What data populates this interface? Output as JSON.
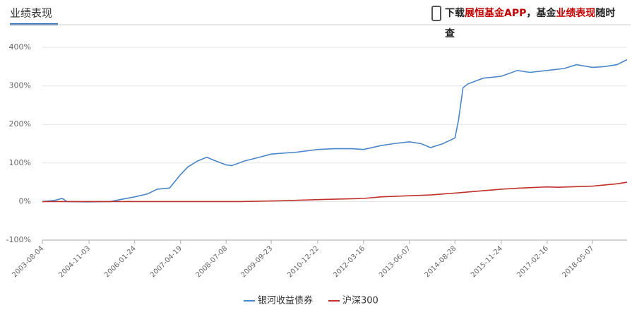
{
  "header": {
    "title": "业绩表现",
    "note_parts": [
      "下载",
      "展恒基金APP",
      "，基金",
      "业绩表现",
      "随时",
      "查"
    ]
  },
  "chart_data": {
    "type": "line",
    "xlim": [
      "2003-08-04",
      "2019-04-10"
    ],
    "xticks": [
      "2003-08-04",
      "2004-11-03",
      "2006-01-24",
      "2007-04-19",
      "2008-07-08",
      "2009-09-23",
      "2010-12-22",
      "2012-03-16",
      "2013-06-07",
      "2014-08-28",
      "2015-11-24",
      "2017-02-16",
      "2018-05-07"
    ],
    "ylim": [
      -100,
      400
    ],
    "yticks": [
      {
        "value": -100,
        "label": "-100%"
      },
      {
        "value": 0,
        "label": "0%"
      },
      {
        "value": 100,
        "label": "100%"
      },
      {
        "value": 200,
        "label": "200%"
      },
      {
        "value": 300,
        "label": "300%"
      },
      {
        "value": 400,
        "label": "400%"
      }
    ],
    "grid": true,
    "series": [
      {
        "name": "银河收益债券",
        "color": "#4a86c8",
        "x": [
          "2003-08-04",
          "2003-12-01",
          "2004-02-15",
          "2004-04-01",
          "2004-11-03",
          "2005-06-01",
          "2005-09-01",
          "2006-01-24",
          "2006-06-01",
          "2006-09-01",
          "2007-01-01",
          "2007-04-19",
          "2007-07-01",
          "2007-10-01",
          "2008-01-01",
          "2008-03-01",
          "2008-07-08",
          "2008-09-01",
          "2009-01-01",
          "2009-06-01",
          "2009-09-23",
          "2010-01-01",
          "2010-06-01",
          "2010-12-22",
          "2011-06-01",
          "2011-12-01",
          "2012-03-16",
          "2012-09-01",
          "2013-01-01",
          "2013-06-07",
          "2013-10-01",
          "2014-01-01",
          "2014-05-01",
          "2014-08-28",
          "2014-10-01",
          "2014-11-15",
          "2015-01-01",
          "2015-06-01",
          "2015-11-24",
          "2016-05-01",
          "2016-09-01",
          "2017-02-16",
          "2017-08-01",
          "2017-12-01",
          "2018-05-07",
          "2018-09-01",
          "2019-01-01",
          "2019-04-10"
        ],
        "values": [
          0,
          3,
          8,
          0,
          -1,
          0,
          5,
          12,
          20,
          32,
          35,
          70,
          90,
          105,
          115,
          108,
          95,
          93,
          105,
          115,
          123,
          125,
          128,
          135,
          137,
          137,
          135,
          145,
          150,
          155,
          150,
          140,
          150,
          165,
          210,
          295,
          305,
          320,
          325,
          340,
          335,
          340,
          345,
          355,
          348,
          350,
          355,
          368
        ]
      },
      {
        "name": "沪深300",
        "color": "#c0302c",
        "x": [
          "2003-08-04",
          "2008-12-01",
          "2009-06-01",
          "2010-01-01",
          "2010-12-22",
          "2011-06-01",
          "2012-03-16",
          "2012-09-01",
          "2013-06-07",
          "2014-01-01",
          "2014-08-28",
          "2015-06-01",
          "2015-11-24",
          "2016-06-01",
          "2017-02-16",
          "2017-06-01",
          "2018-05-07",
          "2019-01-01",
          "2019-04-10"
        ],
        "values": [
          0,
          0,
          1,
          2,
          5,
          6,
          8,
          12,
          15,
          17,
          22,
          28,
          32,
          35,
          38,
          37,
          40,
          46,
          50
        ]
      }
    ]
  }
}
